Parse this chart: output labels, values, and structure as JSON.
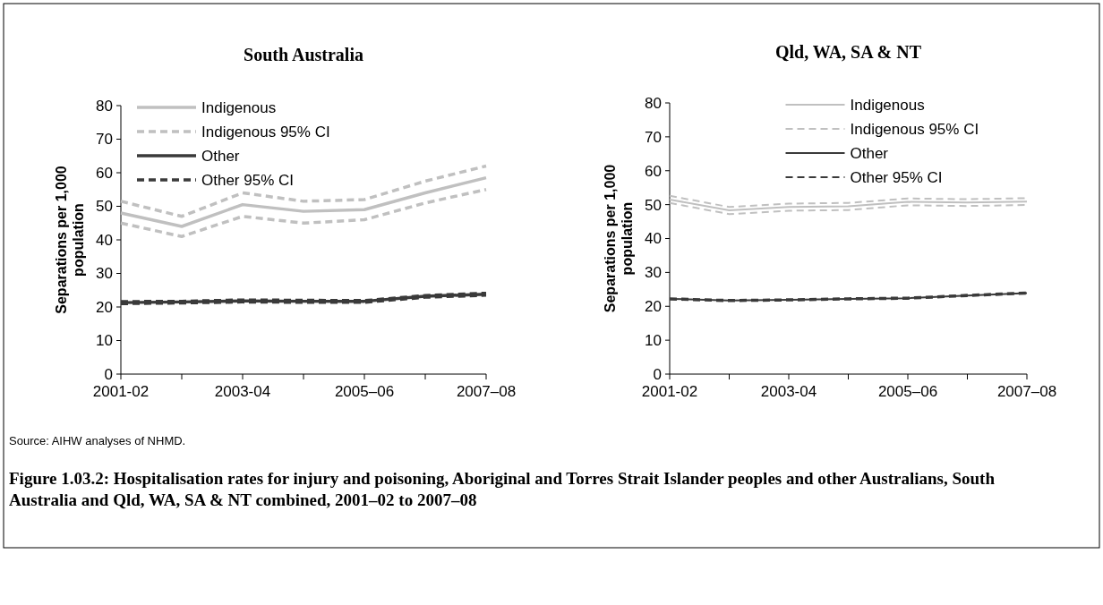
{
  "chart_data": [
    {
      "type": "line",
      "title": "South Australia",
      "ylabel": "Separations per 1,000 population",
      "categories": [
        "2001-02",
        null,
        "2003-04",
        null,
        "2005–06",
        null,
        "2007–08"
      ],
      "ylim": [
        0,
        80
      ],
      "yticks": [
        0,
        10,
        20,
        30,
        40,
        50,
        60,
        70,
        80
      ],
      "grid": false,
      "legend": "top left",
      "series": [
        {
          "name": "Indigenous",
          "color": "#c0c0c0",
          "line_style": "solid",
          "values": [
            48,
            44,
            50.5,
            48.5,
            49,
            54,
            58.5
          ]
        },
        {
          "name": "Indigenous 95% CI",
          "color": "#c0c0c0",
          "line_style": "dashed",
          "values": [
            51.5,
            47,
            54,
            51.5,
            52,
            57.5,
            62
          ]
        },
        {
          "color": "#c0c0c0",
          "line_style": "dashed",
          "values": [
            45,
            41,
            47,
            45,
            46,
            51,
            55
          ]
        },
        {
          "name": "Other",
          "color": "#3a3a3a",
          "line_style": "solid",
          "values": [
            21.3,
            21.5,
            21.8,
            21.7,
            21.7,
            23.2,
            23.8
          ]
        },
        {
          "name": "Other 95% CI",
          "color": "#3a3a3a",
          "line_style": "dashed",
          "values": [
            21.6,
            21.7,
            22.1,
            22,
            21.9,
            23.4,
            24.1
          ]
        },
        {
          "color": "#3a3a3a",
          "line_style": "dashed",
          "values": [
            21,
            21.2,
            21.5,
            21.4,
            21.4,
            22.9,
            23.5
          ]
        }
      ],
      "annotations": [
        "Source: AIHW analyses of NHMD.",
        "Figure 1.03.2: Hospitalisation rates for injury and poisoning, Aboriginal and Torres Strait Islander peoples and other Australians, South Australia and Qld, WA, SA & NT combined, 2001–02  to 2007–08"
      ]
    },
    {
      "type": "line",
      "title": "Qld, WA, SA & NT",
      "ylabel": "Separations per 1,000 population",
      "categories": [
        "2001-02",
        null,
        "2003-04",
        null,
        "2005–06",
        null,
        "2007–08"
      ],
      "ylim": [
        0,
        80
      ],
      "yticks": [
        0,
        10,
        20,
        30,
        40,
        50,
        60,
        70,
        80
      ],
      "grid": false,
      "legend": "top",
      "series": [
        {
          "name": "Indigenous",
          "color": "#c0c0c0",
          "line_style": "solid",
          "values": [
            51.5,
            48.3,
            49.3,
            49.5,
            50.8,
            50.6,
            50.9
          ]
        },
        {
          "name": "Indigenous 95% CI",
          "color": "#c0c0c0",
          "line_style": "dashed",
          "values": [
            52.6,
            49.3,
            50.3,
            50.5,
            51.8,
            51.6,
            51.9
          ]
        },
        {
          "color": "#c0c0c0",
          "line_style": "dashed",
          "values": [
            50.5,
            47.2,
            48.2,
            48.4,
            49.8,
            49.6,
            49.9
          ]
        },
        {
          "name": "Other",
          "color": "#3a3a3a",
          "line_style": "solid",
          "values": [
            22.2,
            21.7,
            21.9,
            22.2,
            22.4,
            23.2,
            23.9
          ]
        },
        {
          "name": "Other 95% CI",
          "color": "#3a3a3a",
          "line_style": "dashed",
          "values": [
            22.4,
            21.9,
            22.1,
            22.4,
            22.6,
            23.4,
            24.1
          ]
        },
        {
          "color": "#3a3a3a",
          "line_style": "dashed",
          "values": [
            22,
            21.5,
            21.7,
            22,
            22.2,
            23,
            23.7
          ]
        }
      ]
    }
  ]
}
